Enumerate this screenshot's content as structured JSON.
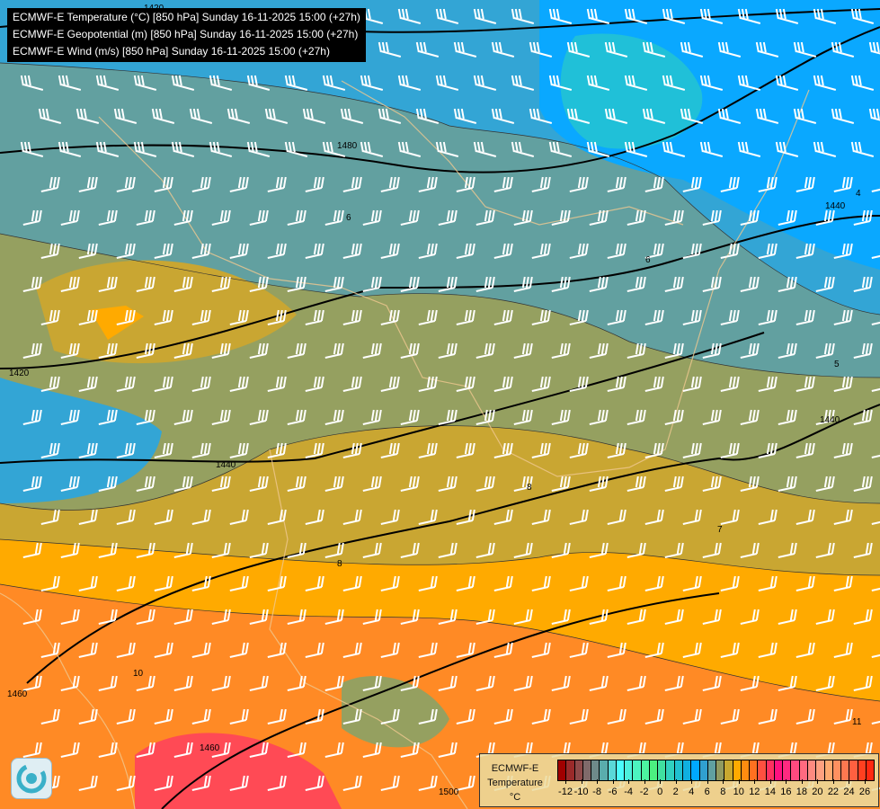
{
  "titles": [
    "ECMWF-E Temperature (°C) [850 hPa] Sunday 16-11-2025 15:00 (+27h)",
    "ECMWF-E Geopotential (m) [850 hPa] Sunday 16-11-2025 15:00 (+27h)",
    "ECMWF-E Wind (m/s) [850 hPa] Sunday 16-11-2025 15:00 (+27h)"
  ],
  "legend": {
    "model": "ECMWF-E",
    "variable": "Temperature",
    "unit": "°C",
    "ticks": [
      "-12",
      "-10",
      "-8",
      "-6",
      "-4",
      "-2",
      "0",
      "2",
      "4",
      "6",
      "8",
      "10",
      "12",
      "14",
      "16",
      "18",
      "20",
      "22",
      "24",
      "26"
    ],
    "colors": [
      "#a00000",
      "#9a2a2a",
      "#8e4a4a",
      "#806a6a",
      "#6e8a8a",
      "#5aacac",
      "#5ad8d8",
      "#4cfcfc",
      "#4cf0dc",
      "#4cf4c0",
      "#4cf4a0",
      "#4cf080",
      "#40e0a0",
      "#30d0c0",
      "#20c0d0",
      "#10b0e0",
      "#00a8ff",
      "#30a0d0",
      "#60a0a0",
      "#909a60",
      "#c8a830",
      "#ffaa00",
      "#ff8c10",
      "#ff7020",
      "#ff5040",
      "#ff3060",
      "#ff1080",
      "#ff2a80",
      "#ff4a80",
      "#ff6a80",
      "#ff8a80",
      "#ffa080",
      "#ffaa70",
      "#ff9060",
      "#ff7850",
      "#ff6040",
      "#ff4020",
      "#ff2810"
    ]
  },
  "contour_labels": {
    "geopotential": [
      "1420",
      "1420",
      "1440",
      "1440",
      "1440",
      "1460",
      "1460",
      "1480",
      "1500"
    ],
    "temperature": [
      "4",
      "5",
      "6",
      "6",
      "7",
      "8",
      "8",
      "10",
      "11"
    ]
  },
  "colors": {
    "contour": "#000000",
    "barbs": "#ffffff",
    "borders": "#f0c890",
    "rivers": "#3366cc"
  }
}
